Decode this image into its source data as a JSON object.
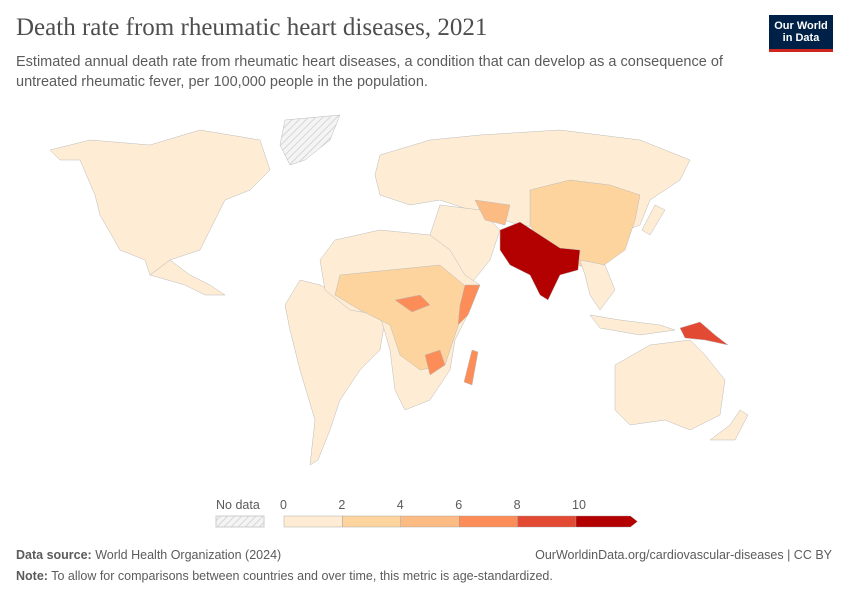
{
  "title": "Death rate from rheumatic heart diseases, 2021",
  "subtitle": "Estimated annual death rate from rheumatic heart diseases, a condition that can develop as a consequence of untreated rheumatic fever, per 100,000 people in the population.",
  "logo": {
    "line1": "Our World",
    "line2": "in Data"
  },
  "legend": {
    "no_data_label": "No data",
    "ticks": [
      "0",
      "2",
      "4",
      "6",
      "8",
      "10"
    ],
    "bins": [
      {
        "range": [
          0,
          2
        ],
        "color": "#feedd4"
      },
      {
        "range": [
          2,
          4
        ],
        "color": "#fdd49e"
      },
      {
        "range": [
          4,
          6
        ],
        "color": "#fdbb84"
      },
      {
        "range": [
          6,
          8
        ],
        "color": "#fc8d59"
      },
      {
        "range": [
          8,
          10
        ],
        "color": "#e34a33"
      },
      {
        "range": [
          10,
          null
        ],
        "color": "#b30000"
      }
    ]
  },
  "footer": {
    "source_label": "Data source:",
    "source": "World Health Organization (2024)",
    "url": "OurWorldinData.org/cardiovascular-diseases | CC BY",
    "note_label": "Note:",
    "note": "To allow for comparisons between countries and over time, this metric is age-standardized."
  }
}
